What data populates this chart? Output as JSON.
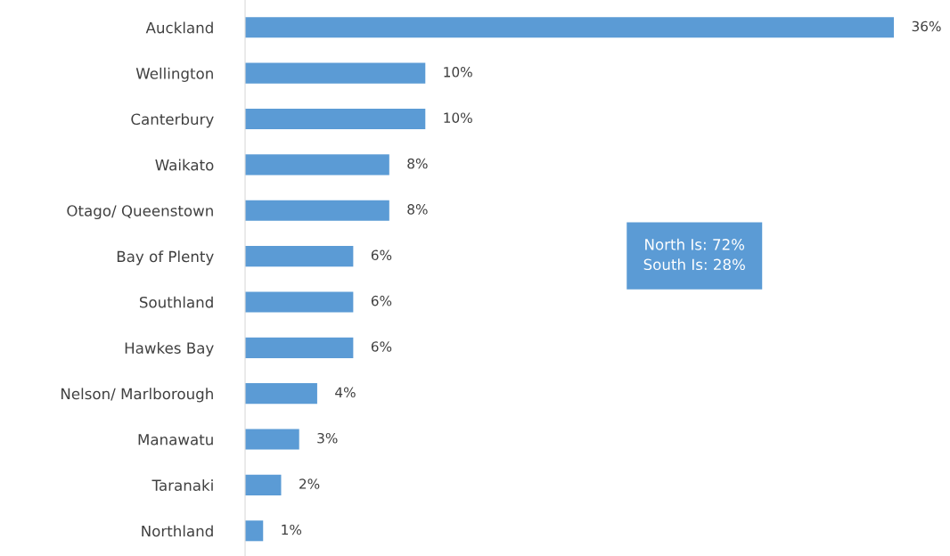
{
  "chart_data": {
    "type": "bar",
    "orientation": "horizontal",
    "categories": [
      "Auckland",
      "Wellington",
      "Canterbury",
      "Waikato",
      "Otago/ Queenstown",
      "Bay of Plenty",
      "Southland",
      "Hawkes Bay",
      "Nelson/ Marlborough",
      "Manawatu",
      "Taranaki",
      "Northland"
    ],
    "values": [
      36,
      10,
      10,
      8,
      8,
      6,
      6,
      6,
      4,
      3,
      2,
      1
    ],
    "color": "#5b9bd5",
    "xlim": [
      0,
      36
    ],
    "tick_labels": "y",
    "grid": false,
    "legend": false,
    "value_labels": [
      "36%",
      "10%",
      "10%",
      "8%",
      "8%",
      "6%",
      "6%",
      "6%",
      "4%",
      "3%",
      "2%",
      "1%"
    ],
    "annotations": [
      "North Is: 72%\nSouth Is: 28%"
    ]
  }
}
